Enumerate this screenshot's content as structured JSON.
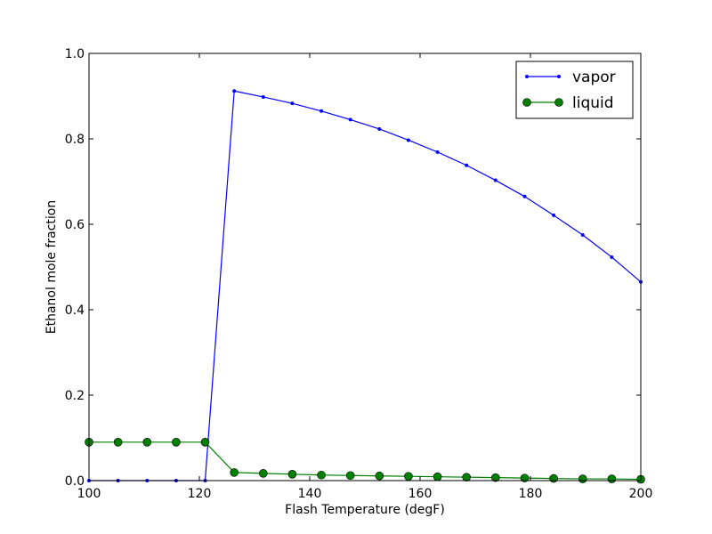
{
  "chart_data": {
    "type": "line",
    "title": "",
    "xlabel": "Flash Temperature (degF)",
    "ylabel": "Ethanol mole fraction",
    "xlim": [
      100,
      200
    ],
    "ylim": [
      0,
      1.0
    ],
    "xticks": [
      100,
      120,
      140,
      160,
      180,
      200
    ],
    "xtick_labels": [
      "100",
      "120",
      "140",
      "160",
      "180",
      "200"
    ],
    "yticks": [
      0,
      0.2,
      0.4,
      0.6,
      0.8,
      1.0
    ],
    "ytick_labels": [
      "0.0",
      "0.2",
      "0.4",
      "0.6",
      "0.8",
      "1.0"
    ],
    "grid": false,
    "legend_position": "top-right",
    "x": [
      100,
      105.26,
      110.53,
      115.79,
      121.05,
      126.32,
      131.58,
      136.84,
      142.11,
      147.37,
      152.63,
      157.89,
      163.16,
      168.42,
      173.68,
      178.95,
      184.21,
      189.47,
      194.74,
      200
    ],
    "series": [
      {
        "name": "vapor",
        "color": "#0000ff",
        "marker": "dot",
        "values": [
          0,
          0,
          0,
          0,
          0,
          0.912,
          0.898,
          0.883,
          0.865,
          0.845,
          0.823,
          0.797,
          0.769,
          0.738,
          0.703,
          0.665,
          0.621,
          0.575,
          0.523,
          0.465
        ]
      },
      {
        "name": "liquid",
        "color": "#008000",
        "marker": "circle",
        "values": [
          0.09,
          0.09,
          0.09,
          0.09,
          0.09,
          0.019,
          0.017,
          0.015,
          0.013,
          0.012,
          0.011,
          0.01,
          0.009,
          0.008,
          0.007,
          0.006,
          0.005,
          0.004,
          0.004,
          0.003
        ]
      }
    ]
  }
}
